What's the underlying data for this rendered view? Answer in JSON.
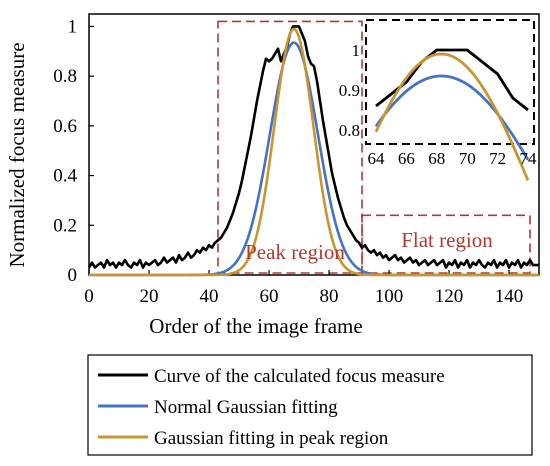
{
  "chart_data": {
    "type": "line",
    "xlabel": "Order of the image frame",
    "ylabel": "Normalized focus measure",
    "xlim": [
      0,
      150
    ],
    "ylim": [
      0,
      1.05
    ],
    "x_ticks": [
      "0",
      "20",
      "40",
      "60",
      "80",
      "100",
      "120",
      "140"
    ],
    "y_ticks": [
      "0",
      "0.2",
      "0.4",
      "0.6",
      "0.8",
      "1"
    ],
    "grid": false,
    "legend_position": "bottom",
    "regions": [
      {
        "label": "Peak region",
        "x_range": [
          43,
          91
        ],
        "y_range": [
          0,
          1.02
        ],
        "color": "#b03a2e"
      },
      {
        "label": "Flat region",
        "x_range": [
          91,
          147
        ],
        "y_range": [
          0,
          0.24
        ],
        "color": "#b03a2e"
      }
    ],
    "series": [
      {
        "name": "Curve of the calculated focus measure",
        "color": "#000000",
        "x": [
          0,
          1,
          2,
          3,
          4,
          5,
          6,
          7,
          8,
          9,
          10,
          11,
          12,
          13,
          14,
          15,
          16,
          17,
          18,
          19,
          20,
          21,
          22,
          23,
          24,
          25,
          26,
          27,
          28,
          29,
          30,
          31,
          32,
          33,
          34,
          35,
          36,
          37,
          38,
          39,
          40,
          41,
          42,
          43,
          44,
          45,
          46,
          47,
          48,
          49,
          50,
          51,
          52,
          53,
          54,
          55,
          56,
          57,
          58,
          59,
          60,
          61,
          62,
          63,
          64,
          65,
          66,
          67,
          68,
          69,
          70,
          71,
          72,
          73,
          74,
          75,
          76,
          77,
          78,
          79,
          80,
          81,
          82,
          83,
          84,
          85,
          86,
          87,
          88,
          89,
          90,
          91,
          92,
          93,
          94,
          95,
          96,
          97,
          98,
          99,
          100,
          101,
          102,
          103,
          104,
          105,
          106,
          107,
          108,
          109,
          110,
          111,
          112,
          113,
          114,
          115,
          116,
          117,
          118,
          119,
          120,
          121,
          122,
          123,
          124,
          125,
          126,
          127,
          128,
          129,
          130,
          131,
          132,
          133,
          134,
          135,
          136,
          137,
          138,
          139,
          140,
          141,
          142,
          143,
          144,
          145,
          146,
          147,
          148,
          149,
          150
        ],
        "y": [
          0.03,
          0.05,
          0.03,
          0.04,
          0.05,
          0.03,
          0.06,
          0.04,
          0.05,
          0.03,
          0.05,
          0.04,
          0.06,
          0.04,
          0.03,
          0.05,
          0.04,
          0.06,
          0.03,
          0.05,
          0.04,
          0.05,
          0.06,
          0.04,
          0.05,
          0.07,
          0.05,
          0.06,
          0.07,
          0.05,
          0.08,
          0.06,
          0.07,
          0.09,
          0.07,
          0.08,
          0.1,
          0.09,
          0.11,
          0.1,
          0.12,
          0.11,
          0.13,
          0.14,
          0.15,
          0.17,
          0.19,
          0.22,
          0.25,
          0.29,
          0.33,
          0.38,
          0.44,
          0.5,
          0.56,
          0.63,
          0.7,
          0.76,
          0.82,
          0.87,
          0.86,
          0.87,
          0.89,
          0.91,
          0.86,
          0.89,
          0.92,
          0.97,
          1.0,
          1.0,
          1.0,
          0.97,
          0.94,
          0.88,
          0.85,
          0.84,
          0.78,
          0.7,
          0.62,
          0.55,
          0.48,
          0.41,
          0.36,
          0.31,
          0.27,
          0.23,
          0.2,
          0.18,
          0.16,
          0.14,
          0.13,
          0.11,
          0.12,
          0.1,
          0.09,
          0.1,
          0.08,
          0.09,
          0.07,
          0.08,
          0.06,
          0.07,
          0.08,
          0.06,
          0.07,
          0.05,
          0.06,
          0.07,
          0.05,
          0.06,
          0.04,
          0.05,
          0.06,
          0.04,
          0.05,
          0.06,
          0.04,
          0.05,
          0.06,
          0.03,
          0.05,
          0.04,
          0.06,
          0.03,
          0.05,
          0.04,
          0.06,
          0.03,
          0.05,
          0.04,
          0.06,
          0.04,
          0.03,
          0.05,
          0.04,
          0.06,
          0.03,
          0.05,
          0.04,
          0.06,
          0.03,
          0.05,
          0.04,
          0.06,
          0.03,
          0.05,
          0.04,
          0.06,
          0.04,
          0.04,
          0.04
        ]
      },
      {
        "name": "Normal Gaussian fitting",
        "color": "#4472c4",
        "gaussian": {
          "amplitude": 0.935,
          "mean": 68.3,
          "sigma": 8.0
        }
      },
      {
        "name": "Gaussian fitting in peak region",
        "color": "#c9952e",
        "gaussian": {
          "amplitude": 0.99,
          "mean": 68.3,
          "sigma": 6.5
        }
      }
    ],
    "inset": {
      "xlim": [
        64,
        74
      ],
      "ylim": [
        0.8,
        1.03
      ],
      "x_ticks": [
        "64",
        "66",
        "68",
        "70",
        "72",
        "74"
      ],
      "y_ticks": [
        "0.8",
        "0.9",
        "1"
      ]
    }
  }
}
